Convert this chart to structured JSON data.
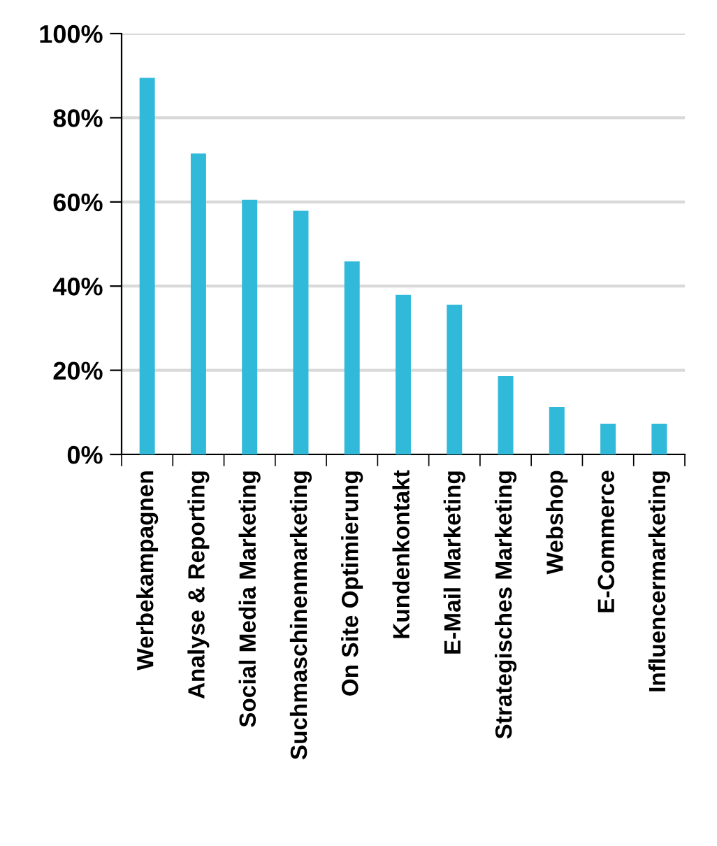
{
  "chart_data": {
    "type": "bar",
    "categories": [
      "Werbekampagnen",
      "Analyse & Reporting",
      "Social Media Marketing",
      "Suchmaschinenmarketing",
      "On Site Optimierung",
      "Kundenkontakt",
      "E-Mail Marketing",
      "Strategisches Marketing",
      "Webshop",
      "E-Commerce",
      "Influencermarketing"
    ],
    "values": [
      89.5,
      71.5,
      60.5,
      57.9,
      45.9,
      37.9,
      35.6,
      18.6,
      11.3,
      7.3,
      7.3
    ],
    "color": "#31b9da",
    "ylim": [
      0,
      100
    ],
    "yticks": [
      {
        "value": 0,
        "label": "0%"
      },
      {
        "value": 20,
        "label": "20%"
      },
      {
        "value": 40,
        "label": "40%"
      },
      {
        "value": 60,
        "label": "60%"
      },
      {
        "value": 80,
        "label": "80%"
      },
      {
        "value": 100,
        "label": "100%"
      }
    ],
    "grid": "y"
  }
}
